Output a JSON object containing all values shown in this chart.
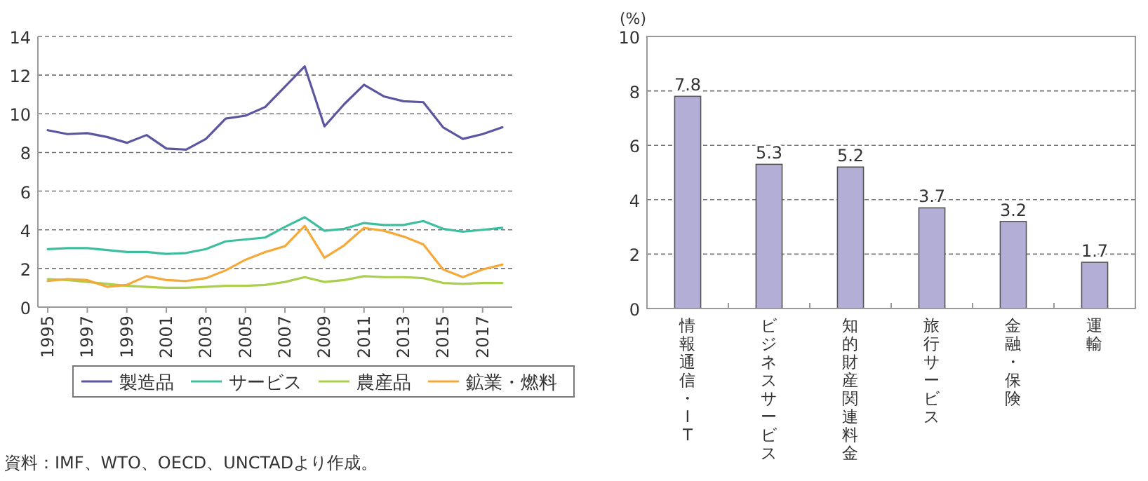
{
  "chart_data": [
    {
      "type": "line",
      "x": [
        1995,
        1996,
        1997,
        1998,
        1999,
        2000,
        2001,
        2002,
        2003,
        2004,
        2005,
        2006,
        2007,
        2008,
        2009,
        2010,
        2011,
        2012,
        2013,
        2014,
        2015,
        2016,
        2017,
        2018
      ],
      "series": [
        {
          "name": "製造品",
          "color": "#5b56a0",
          "values": [
            9.15,
            8.95,
            9.0,
            8.8,
            8.5,
            8.9,
            8.2,
            8.15,
            8.7,
            9.75,
            9.9,
            10.35,
            11.4,
            12.45,
            9.35,
            10.5,
            11.5,
            10.9,
            10.65,
            10.6,
            9.3,
            8.7,
            8.95,
            9.3
          ]
        },
        {
          "name": "サービス",
          "color": "#3dbf9f",
          "values": [
            3.0,
            3.05,
            3.05,
            2.95,
            2.85,
            2.85,
            2.75,
            2.8,
            3.0,
            3.4,
            3.5,
            3.6,
            4.15,
            4.65,
            3.95,
            4.05,
            4.35,
            4.25,
            4.25,
            4.45,
            4.05,
            3.9,
            4.0,
            4.1
          ]
        },
        {
          "name": "農産品",
          "color": "#a9cf4c",
          "values": [
            1.45,
            1.4,
            1.3,
            1.2,
            1.1,
            1.05,
            1.0,
            1.0,
            1.05,
            1.1,
            1.1,
            1.15,
            1.3,
            1.55,
            1.3,
            1.4,
            1.6,
            1.55,
            1.55,
            1.5,
            1.25,
            1.2,
            1.25,
            1.25
          ]
        },
        {
          "name": "鉱業・燃料",
          "color": "#f5a93a",
          "values": [
            1.35,
            1.45,
            1.4,
            1.05,
            1.15,
            1.6,
            1.4,
            1.35,
            1.5,
            1.9,
            2.45,
            2.85,
            3.15,
            4.2,
            2.55,
            3.2,
            4.1,
            3.95,
            3.65,
            3.25,
            1.95,
            1.55,
            1.95,
            2.2
          ]
        }
      ],
      "xlim": [
        1994.5,
        2018.5
      ],
      "xticks": [
        1995,
        1997,
        1999,
        2001,
        2003,
        2005,
        2007,
        2009,
        2011,
        2013,
        2015,
        2017
      ],
      "ylim": [
        0,
        14
      ],
      "yticks": [
        0,
        2,
        4,
        6,
        8,
        10,
        12,
        14
      ],
      "grid": "y",
      "legend": "bottom",
      "marker": "none",
      "line_style": "solid",
      "annotations": [
        "資料：IMF、WTO、OECD、UNCTADより作成。"
      ]
    },
    {
      "type": "bar",
      "categories": [
        "情報通信・IT",
        "ビジネスサービス",
        "知的財産関連料金",
        "旅行サービス",
        "金融・保険",
        "運輸"
      ],
      "values": [
        7.8,
        5.3,
        5.2,
        3.7,
        3.2,
        1.7
      ],
      "color": "#b3aed6",
      "ylabel": "(%)",
      "ylim": [
        0,
        10
      ],
      "yticks": [
        0,
        2,
        4,
        6,
        8,
        10
      ],
      "grid": "y",
      "data_labels": true
    }
  ]
}
